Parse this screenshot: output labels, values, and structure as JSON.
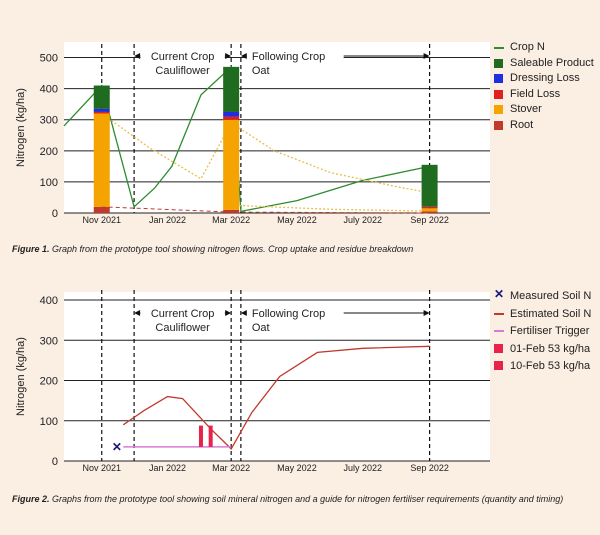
{
  "colors": {
    "crop_n": "#2e8b2e",
    "saleable_product": "#1f6b1f",
    "dressing_loss": "#1f2fe0",
    "field_loss": "#e02020",
    "stover": "#f5a300",
    "root": "#c0392b",
    "residue_dotted": "#e6c04a",
    "estimated_soil_n": "#c0392b",
    "fertiliser_trigger": "#d77ad7",
    "fert_events": "#e8234a",
    "measured": "#1a1a7a"
  },
  "fig1": {
    "caption_label": "Figure 1.",
    "caption_text": " Graph from the prototype tool showing nitrogen flows. Crop uptake and residue breakdown",
    "current_crop_label": "Current Crop",
    "current_crop_name": "Cauliflower",
    "following_crop_label": "Following Crop",
    "following_crop_name": "Oat",
    "legend": [
      {
        "label": "Crop N",
        "kind": "line",
        "color": "#2e8b2e"
      },
      {
        "label": "Saleable Product",
        "kind": "box",
        "color": "#1f6b1f"
      },
      {
        "label": "Dressing Loss",
        "kind": "box",
        "color": "#1f2fe0"
      },
      {
        "label": "Field Loss",
        "kind": "box",
        "color": "#e02020"
      },
      {
        "label": "Stover",
        "kind": "box",
        "color": "#f5a300"
      },
      {
        "label": "Root",
        "kind": "box",
        "color": "#c0392b"
      }
    ]
  },
  "fig2": {
    "caption_label": "Figure 2.",
    "caption_text": " Graphs from the prototype tool showing soil mineral nitrogen and a guide for nitrogen fertiliser requirements (quantity and timing)",
    "current_crop_label": "Current Crop",
    "current_crop_name": "Cauliflower",
    "following_crop_label": "Following Crop",
    "following_crop_name": "Oat",
    "legend": [
      {
        "label": "Measured Soil N",
        "kind": "cross",
        "color": "#1a1a7a"
      },
      {
        "label": "Estimated Soil N",
        "kind": "line",
        "color": "#c0392b"
      },
      {
        "label": "Fertiliser Trigger",
        "kind": "line",
        "color": "#d77ad7"
      },
      {
        "label": "01-Feb 53 kg/ha",
        "kind": "box",
        "color": "#e8234a"
      },
      {
        "label": "10-Feb 53 kg/ha",
        "kind": "box",
        "color": "#e8234a"
      }
    ]
  },
  "chart_data": [
    {
      "type": "bar",
      "ylabel": "Nitrogen (kg/ha)",
      "ylim": [
        0,
        550
      ],
      "yticks": [
        0,
        100,
        200,
        300,
        400,
        500
      ],
      "xlim": [
        "2021-09-27",
        "2022-10-27"
      ],
      "xticks": [
        {
          "date": "2021-11-01",
          "label": "Nov 2021"
        },
        {
          "date": "2022-01-01",
          "label": "Jan 2022"
        },
        {
          "date": "2022-03-01",
          "label": "Mar 2022"
        },
        {
          "date": "2022-05-01",
          "label": "May 2022"
        },
        {
          "date": "2022-07-01",
          "label": "July 2022"
        },
        {
          "date": "2022-09-01",
          "label": "Sep 2022"
        }
      ],
      "vlines": [
        "2021-11-01",
        "2021-12-01",
        "2022-03-01",
        "2022-03-10",
        "2022-09-01"
      ],
      "grid": "horizontal",
      "legend_position": "right",
      "stacked_bars": [
        {
          "date": "2021-11-01",
          "root": 20,
          "stover": 300,
          "field_loss": 5,
          "dressing_loss": 10,
          "saleable_product": 75
        },
        {
          "date": "2022-03-01",
          "root": 10,
          "stover": 290,
          "field_loss": 10,
          "dressing_loss": 15,
          "saleable_product": 145
        },
        {
          "date": "2022-09-01",
          "root": 5,
          "stover": 10,
          "field_loss": 5,
          "dressing_loss": 0,
          "saleable_product": 135
        }
      ],
      "series": [
        {
          "name": "Crop N",
          "style": "line",
          "x": [
            "2021-09-27",
            "2021-11-01",
            "2021-12-01",
            "2021-12-20",
            "2022-01-05",
            "2022-02-01",
            "2022-03-01",
            "2022-03-10",
            "2022-05-01",
            "2022-07-01",
            "2022-09-01"
          ],
          "y": [
            280,
            410,
            20,
            80,
            150,
            380,
            470,
            5,
            40,
            105,
            150
          ]
        },
        {
          "style": "dotted",
          "color": "#e6c04a",
          "x": [
            "2021-11-01",
            "2021-12-15",
            "2022-02-01",
            "2022-03-01",
            "2022-04-10",
            "2022-06-01",
            "2022-08-01",
            "2022-09-01"
          ],
          "y": [
            320,
            210,
            110,
            290,
            200,
            130,
            85,
            65
          ]
        },
        {
          "style": "dotted",
          "color": "#e6c04a",
          "x": [
            "2022-03-01",
            "2022-06-01",
            "2022-09-01"
          ],
          "y": [
            25,
            12,
            6
          ]
        },
        {
          "style": "dashed",
          "color": "#c0392b",
          "x": [
            "2021-11-01",
            "2022-03-01",
            "2022-09-01"
          ],
          "y": [
            20,
            3,
            0
          ]
        }
      ]
    },
    {
      "type": "line",
      "ylabel": "Nitrogen (kg/ha)",
      "ylim": [
        0,
        420
      ],
      "yticks": [
        0,
        100,
        200,
        300,
        400
      ],
      "xlim": [
        "2021-09-27",
        "2022-10-27"
      ],
      "xticks": [
        {
          "date": "2021-11-01",
          "label": "Nov 2021"
        },
        {
          "date": "2022-01-01",
          "label": "Jan 2022"
        },
        {
          "date": "2022-03-01",
          "label": "Mar 2022"
        },
        {
          "date": "2022-05-01",
          "label": "May 2022"
        },
        {
          "date": "2022-07-01",
          "label": "July 2022"
        },
        {
          "date": "2022-09-01",
          "label": "Sep 2022"
        }
      ],
      "vlines": [
        "2021-11-01",
        "2021-12-01",
        "2022-03-01",
        "2022-03-10",
        "2022-09-01"
      ],
      "grid": "horizontal",
      "legend_position": "right",
      "series": [
        {
          "name": "Measured Soil N",
          "style": "marker",
          "x": [
            "2021-11-15"
          ],
          "y": [
            35
          ]
        },
        {
          "name": "Estimated Soil N",
          "style": "line",
          "x": [
            "2021-11-21",
            "2021-12-10",
            "2022-01-01",
            "2022-01-15",
            "2022-02-10",
            "2022-03-01",
            "2022-03-20",
            "2022-04-15",
            "2022-05-20",
            "2022-07-01",
            "2022-09-01"
          ],
          "y": [
            90,
            125,
            160,
            155,
            80,
            30,
            120,
            210,
            270,
            280,
            285
          ]
        },
        {
          "name": "Fertiliser Trigger",
          "style": "line",
          "x": [
            "2021-11-21",
            "2022-03-01"
          ],
          "y": [
            35,
            35
          ]
        }
      ],
      "events": [
        {
          "name": "01-Feb 53 kg/ha",
          "date": "2022-02-01",
          "height": 53
        },
        {
          "name": "10-Feb 53 kg/ha",
          "date": "2022-02-10",
          "height": 53
        }
      ]
    }
  ]
}
